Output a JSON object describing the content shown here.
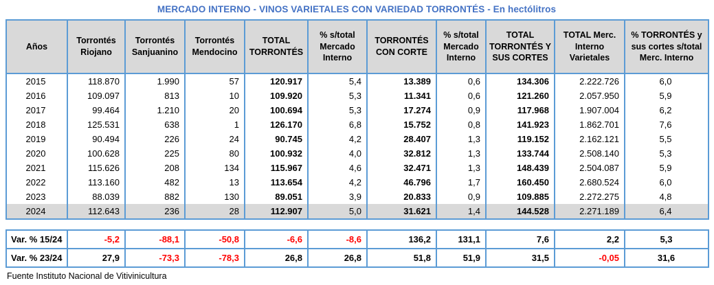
{
  "colors": {
    "title_blue": "#4472C4",
    "border_blue": "#5B9BD5",
    "header_fill": "#D9D9D9",
    "highlight_row_fill": "#D9D9D9",
    "negative_red": "#FF0000"
  },
  "chart_data": {
    "type": "table",
    "title": "MERCADO INTERNO - VINOS VARIETALES CON VARIEDAD TORRONTÉS - En hectólitros",
    "unit": "hectólitros",
    "columns": [
      "Años",
      "Torrontés Riojano",
      "Torrontés Sanjuanino",
      "Torrontés Mendocino",
      "TOTAL TORRONTÉS",
      "% s/total Mercado Interno",
      "TORRONTÉS CON CORTE",
      "% s/total Mercado Interno",
      "TOTAL TORRONTÉS Y SUS CORTES",
      "TOTAL Merc. Interno Varietales",
      "% TORRONTÉS y sus cortes s/total Merc. Interno"
    ],
    "rows": [
      [
        "2015",
        "118.870",
        "1.990",
        "57",
        "120.917",
        "5,4",
        "13.389",
        "0,6",
        "134.306",
        "2.222.726",
        "6,0"
      ],
      [
        "2016",
        "109.097",
        "813",
        "10",
        "109.920",
        "5,3",
        "11.341",
        "0,6",
        "121.260",
        "2.057.950",
        "5,9"
      ],
      [
        "2017",
        "99.464",
        "1.210",
        "20",
        "100.694",
        "5,3",
        "17.274",
        "0,9",
        "117.968",
        "1.907.004",
        "6,2"
      ],
      [
        "2018",
        "125.531",
        "638",
        "1",
        "126.170",
        "6,8",
        "15.752",
        "0,8",
        "141.923",
        "1.862.701",
        "7,6"
      ],
      [
        "2019",
        "90.494",
        "226",
        "24",
        "90.745",
        "4,2",
        "28.407",
        "1,3",
        "119.152",
        "2.162.121",
        "5,5"
      ],
      [
        "2020",
        "100.628",
        "225",
        "80",
        "100.932",
        "4,0",
        "32.812",
        "1,3",
        "133.744",
        "2.508.140",
        "5,3"
      ],
      [
        "2021",
        "115.626",
        "208",
        "134",
        "115.967",
        "4,6",
        "32.471",
        "1,3",
        "148.439",
        "2.504.087",
        "5,9"
      ],
      [
        "2022",
        "113.160",
        "482",
        "13",
        "113.654",
        "4,2",
        "46.796",
        "1,7",
        "160.450",
        "2.680.524",
        "6,0"
      ],
      [
        "2023",
        "88.039",
        "882",
        "130",
        "89.051",
        "3,9",
        "20.833",
        "0,9",
        "109.885",
        "2.272.275",
        "4,8"
      ],
      [
        "2024",
        "112.643",
        "236",
        "28",
        "112.907",
        "5,0",
        "31.621",
        "1,4",
        "144.528",
        "2.271.189",
        "6,4"
      ]
    ],
    "highlighted_row": "2024",
    "variation_rows": [
      [
        "Var. % 15/24",
        "-5,2",
        "-88,1",
        "-50,8",
        "-6,6",
        "-8,6",
        "136,2",
        "131,1",
        "7,6",
        "2,2",
        "5,3"
      ],
      [
        "Var. % 23/24",
        "27,9",
        "-73,3",
        "-78,3",
        "26,8",
        "26,8",
        "51,8",
        "51,9",
        "31,5",
        "-0,05",
        "31,6"
      ]
    ],
    "source": "Fuente Instituto Nacional de Vitivinicultura"
  }
}
